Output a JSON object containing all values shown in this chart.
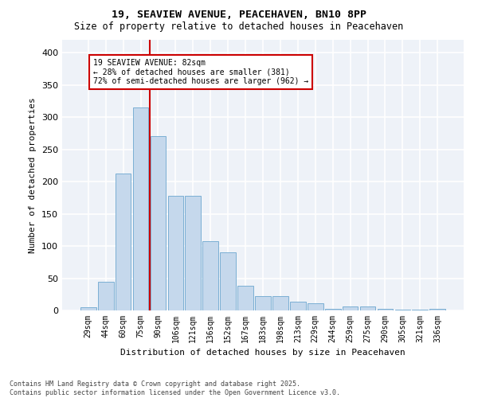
{
  "title_line1": "19, SEAVIEW AVENUE, PEACEHAVEN, BN10 8PP",
  "title_line2": "Size of property relative to detached houses in Peacehaven",
  "xlabel": "Distribution of detached houses by size in Peacehaven",
  "ylabel": "Number of detached properties",
  "categories": [
    "29sqm",
    "44sqm",
    "60sqm",
    "75sqm",
    "90sqm",
    "106sqm",
    "121sqm",
    "136sqm",
    "152sqm",
    "167sqm",
    "183sqm",
    "198sqm",
    "213sqm",
    "229sqm",
    "244sqm",
    "259sqm",
    "275sqm",
    "290sqm",
    "305sqm",
    "321sqm",
    "336sqm"
  ],
  "values": [
    5,
    44,
    212,
    315,
    270,
    178,
    178,
    108,
    90,
    38,
    22,
    22,
    13,
    11,
    3,
    6,
    6,
    3,
    1,
    1,
    3
  ],
  "bar_color": "#c5d8ec",
  "bar_edge_color": "#7bafd4",
  "property_bin_index": 3,
  "vline_x": 3.5,
  "annotation_title": "19 SEAVIEW AVENUE: 82sqm",
  "annotation_line2": "← 28% of detached houses are smaller (381)",
  "annotation_line3": "72% of semi-detached houses are larger (962) →",
  "vline_color": "#cc0000",
  "annotation_box_color": "#cc0000",
  "ylim": [
    0,
    420
  ],
  "yticks": [
    0,
    50,
    100,
    150,
    200,
    250,
    300,
    350,
    400
  ],
  "footer_line1": "Contains HM Land Registry data © Crown copyright and database right 2025.",
  "footer_line2": "Contains public sector information licensed under the Open Government Licence v3.0.",
  "bg_color": "#eef2f8",
  "grid_color": "#ffffff"
}
